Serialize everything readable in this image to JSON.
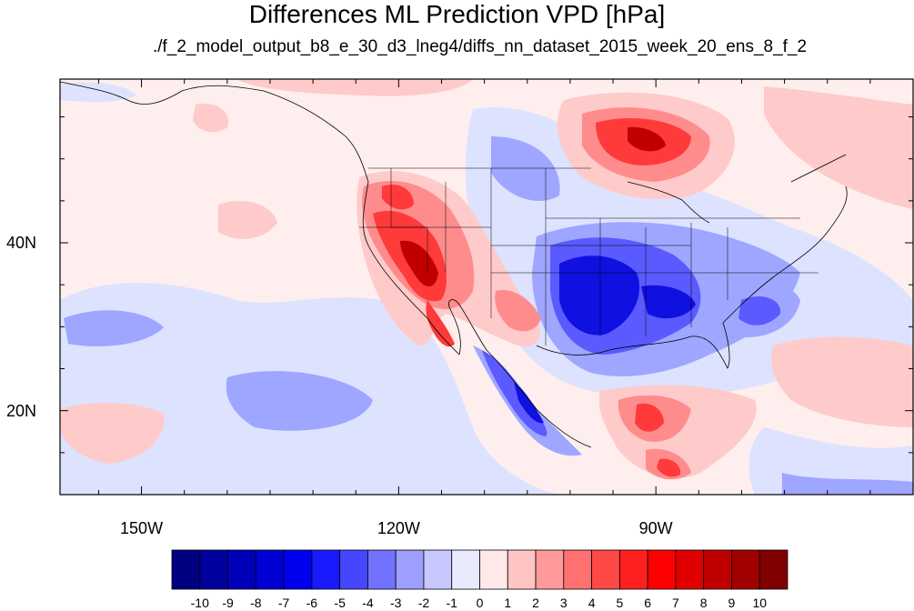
{
  "title": "Differences ML Prediction VPD [hPa]",
  "subtitle": "./f_2_model_output_b8_e_30_d3_lneg4/diffs_nn_dataset_2015_week_20_ens_8_f_2",
  "axes": {
    "x_ticks": [
      {
        "label": "150W",
        "lon": -150
      },
      {
        "label": "120W",
        "lon": -120
      },
      {
        "label": "90W",
        "lon": -90
      }
    ],
    "y_ticks": [
      {
        "label": "40N",
        "lat": 40
      },
      {
        "label": "20N",
        "lat": 20
      }
    ],
    "lon_range": [
      -159.5,
      -60
    ],
    "lat_range": [
      10,
      59.5
    ]
  },
  "colorbar": {
    "labels": [
      "-10",
      "-9",
      "-8",
      "-7",
      "-6",
      "-5",
      "-4",
      "-3",
      "-2",
      "-1",
      "0",
      "1",
      "2",
      "3",
      "4",
      "5",
      "6",
      "7",
      "8",
      "9",
      "10"
    ],
    "colors": [
      "#000080",
      "#00009c",
      "#0000b8",
      "#0000d4",
      "#0000f0",
      "#1a1aff",
      "#4646ff",
      "#7272ff",
      "#9e9eff",
      "#c8c8ff",
      "#eaeaff",
      "#ffe8e8",
      "#ffc4c4",
      "#ff9a9a",
      "#ff7070",
      "#ff4848",
      "#ff2020",
      "#ff0000",
      "#e00000",
      "#c00000",
      "#a00000",
      "#800000"
    ]
  },
  "map_colors": {
    "background": "#ffeeee",
    "blue_light": "#dde2ff",
    "blue_mid": "#9ea6ff",
    "blue_strong": "#5a5aff",
    "blue_deep": "#1010e0",
    "red_light": "#ffcaca",
    "red_mid": "#ff8c8c",
    "red_strong": "#ff3a3a",
    "red_deep": "#c00000"
  }
}
